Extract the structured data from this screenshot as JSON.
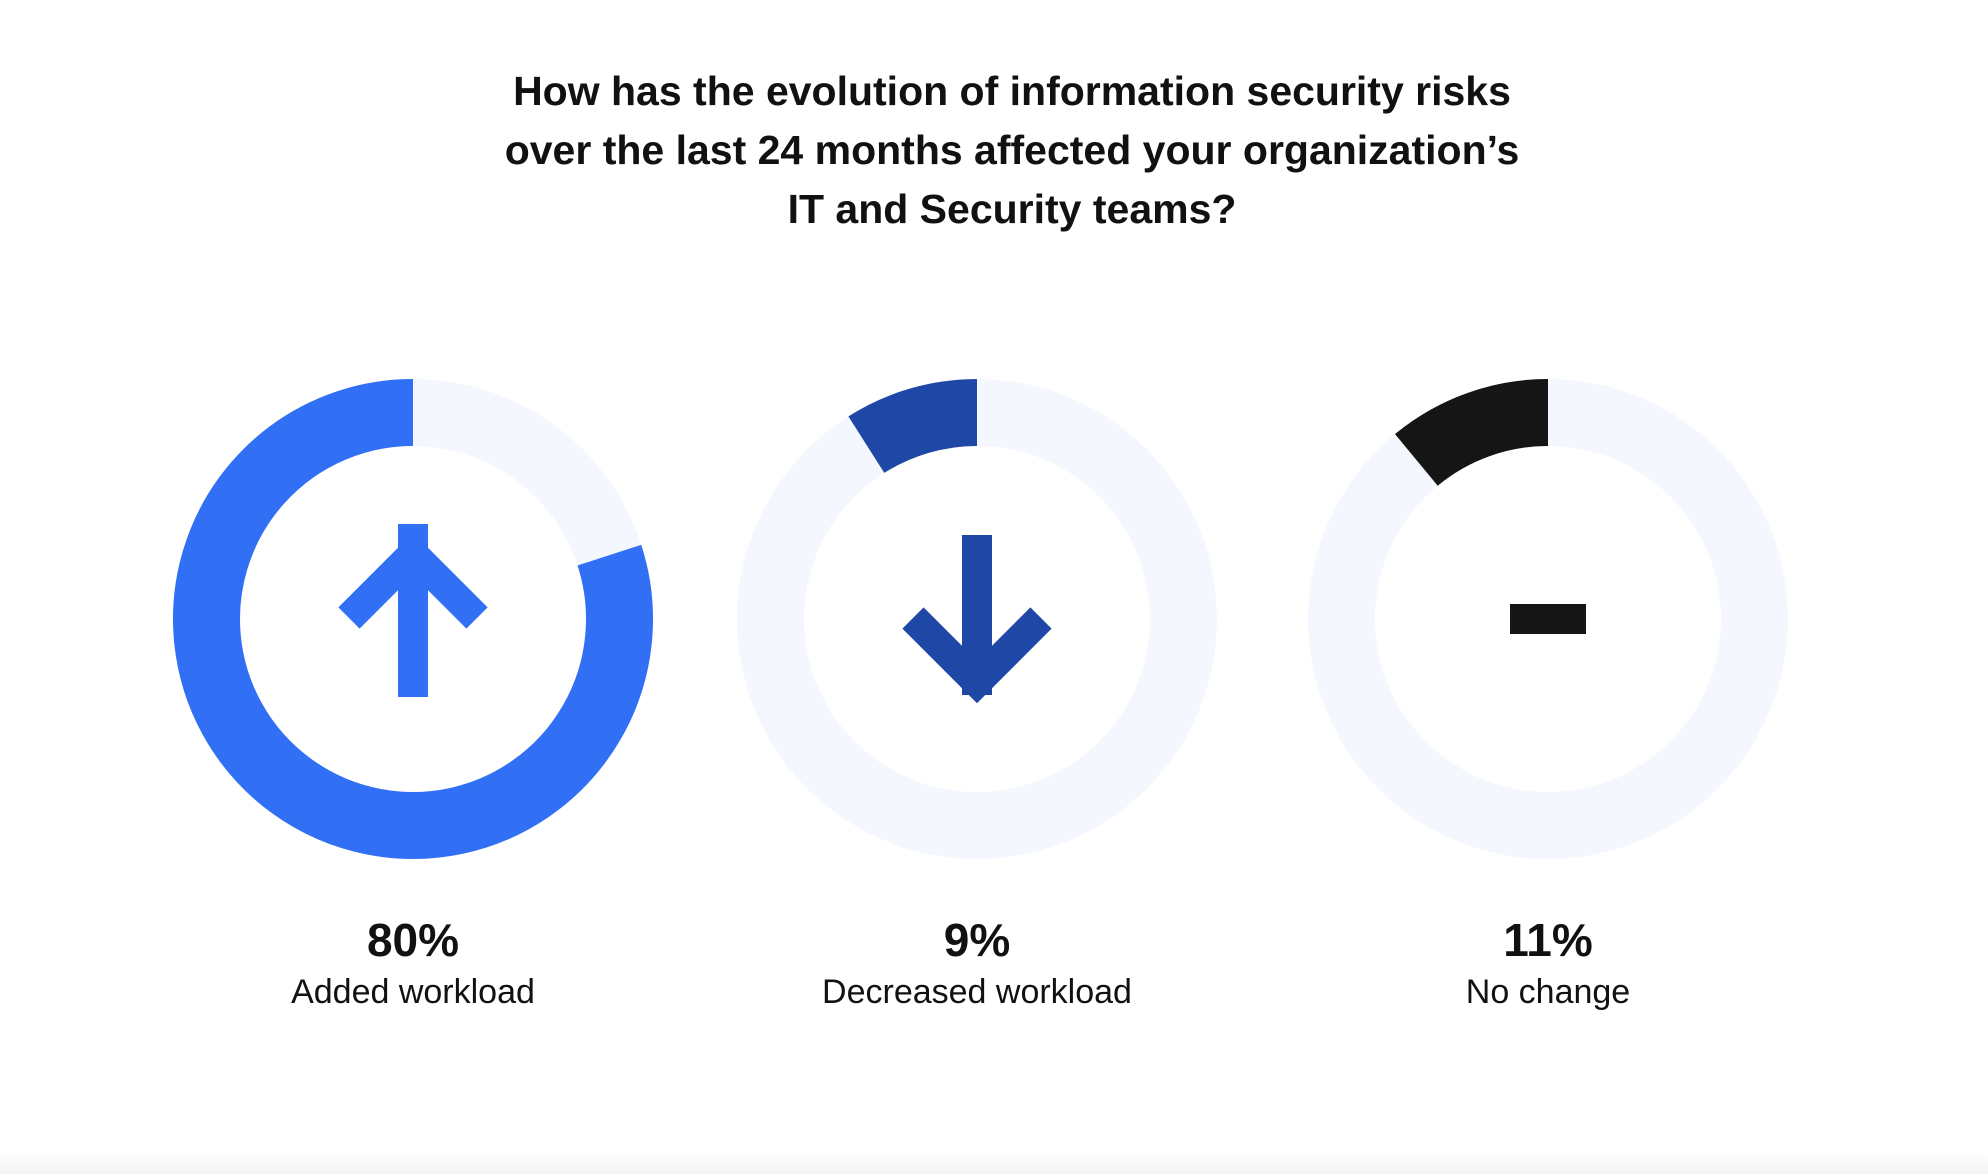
{
  "title": "How has the evolution of information security risks over the last 24 months affected your organization’s IT and Security teams?",
  "colors": {
    "track": "#f4f8fe",
    "added": "#316ff5",
    "decreased": "#1f47a6",
    "no_change": "#151515"
  },
  "chart_data": {
    "type": "pie",
    "title": "How has the evolution of information security risks over the last 24 months affected your organization’s IT and Security teams?",
    "series": [
      {
        "name": "Added workload",
        "value": 80,
        "display": "80%",
        "icon": "arrow-up-icon",
        "color": "#316ff5"
      },
      {
        "name": "Decreased workload",
        "value": 9,
        "display": "9%",
        "icon": "arrow-down-icon",
        "color": "#1f47a6"
      },
      {
        "name": "No change",
        "value": 11,
        "display": "11%",
        "icon": "dash-icon",
        "color": "#151515"
      }
    ]
  }
}
